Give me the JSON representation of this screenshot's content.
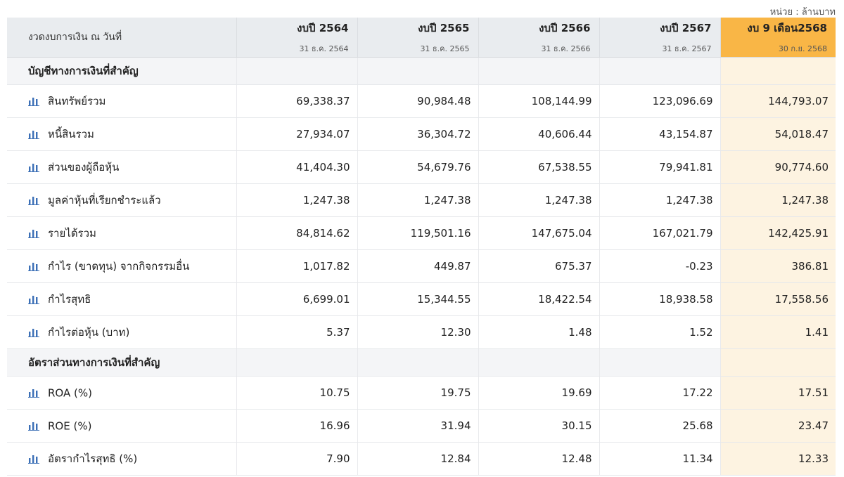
{
  "unit_note": "หน่วย : ล้านบาท",
  "header": {
    "label": "งวดงบการเงิน ณ วันที่",
    "periods": [
      {
        "year": "งบปี 2564",
        "date": "31 ธ.ค. 2564"
      },
      {
        "year": "งบปี 2565",
        "date": "31 ธ.ค. 2565"
      },
      {
        "year": "งบปี 2566",
        "date": "31 ธ.ค. 2566"
      },
      {
        "year": "งบปี 2567",
        "date": "31 ธ.ค. 2567"
      },
      {
        "year": "งบ 9 เดือน2568",
        "date": "30 ก.ย. 2568"
      }
    ]
  },
  "sections": [
    {
      "title": "บัญชีทางการเงินที่สำคัญ",
      "rows": [
        {
          "label": "สินทรัพย์รวม",
          "values": [
            "69,338.37",
            "90,984.48",
            "108,144.99",
            "123,096.69",
            "144,793.07"
          ]
        },
        {
          "label": "หนี้สินรวม",
          "values": [
            "27,934.07",
            "36,304.72",
            "40,606.44",
            "43,154.87",
            "54,018.47"
          ]
        },
        {
          "label": "ส่วนของผู้ถือหุ้น",
          "values": [
            "41,404.30",
            "54,679.76",
            "67,538.55",
            "79,941.81",
            "90,774.60"
          ]
        },
        {
          "label": "มูลค่าหุ้นที่เรียกชำระแล้ว",
          "values": [
            "1,247.38",
            "1,247.38",
            "1,247.38",
            "1,247.38",
            "1,247.38"
          ]
        },
        {
          "label": "รายได้รวม",
          "values": [
            "84,814.62",
            "119,501.16",
            "147,675.04",
            "167,021.79",
            "142,425.91"
          ]
        },
        {
          "label": "กำไร (ขาดทุน) จากกิจกรรมอื่น",
          "values": [
            "1,017.82",
            "449.87",
            "675.37",
            "-0.23",
            "386.81"
          ]
        },
        {
          "label": "กำไรสุทธิ",
          "values": [
            "6,699.01",
            "15,344.55",
            "18,422.54",
            "18,938.58",
            "17,558.56"
          ]
        },
        {
          "label": "กำไรต่อหุ้น (บาท)",
          "values": [
            "5.37",
            "12.30",
            "1.48",
            "1.52",
            "1.41"
          ]
        }
      ]
    },
    {
      "title": "อัตราส่วนทางการเงินที่สำคัญ",
      "rows": [
        {
          "label": "ROA (%)",
          "values": [
            "10.75",
            "19.75",
            "19.69",
            "17.22",
            "17.51"
          ]
        },
        {
          "label": "ROE (%)",
          "values": [
            "16.96",
            "31.94",
            "30.15",
            "25.68",
            "23.47"
          ]
        },
        {
          "label": "อัตรากำไรสุทธิ (%)",
          "values": [
            "7.90",
            "12.84",
            "12.48",
            "11.34",
            "12.33"
          ]
        }
      ]
    }
  ],
  "colors": {
    "header_bg": "#e9ecef",
    "highlight_header": "#f9b646",
    "highlight_column": "#fdf3e1",
    "icon_blue": "#3b6fb6"
  },
  "icons": {
    "row_icon": "bar-chart-icon"
  }
}
